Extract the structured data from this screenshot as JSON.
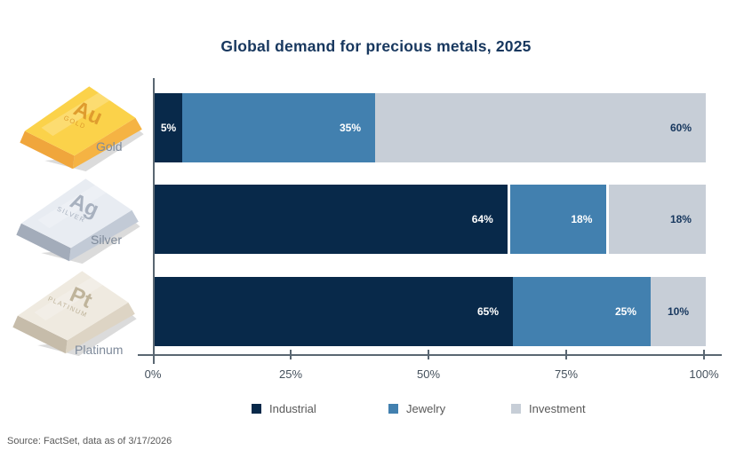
{
  "title": "Global demand for precious metals, 2025",
  "source": "Source: FactSet, data as of 3/17/2026",
  "colors": {
    "industrial": "#08294A",
    "jewelry": "#4280AF",
    "investment": "#C7CED7",
    "title_text": "#17375E",
    "axis": "#5A6772",
    "tick_label": "#44505C",
    "metal_label": "#7E8A9A",
    "legend_label": "#595959",
    "source_label": "#595959"
  },
  "chart_data": {
    "type": "bar",
    "orientation": "horizontal",
    "stacked": true,
    "title": "Global demand for precious metals, 2025",
    "categories": [
      "Gold",
      "Silver",
      "Platinum"
    ],
    "series": [
      {
        "name": "Industrial",
        "color_key": "industrial",
        "label_color": "#FFFFFF",
        "values": [
          5,
          64,
          65
        ]
      },
      {
        "name": "Jewelry",
        "color_key": "jewelry",
        "label_color": "#FFFFFF",
        "values": [
          35,
          18,
          25
        ]
      },
      {
        "name": "Investment",
        "color_key": "investment",
        "label_color": "#17375E",
        "values": [
          60,
          18,
          10
        ]
      }
    ],
    "x_ticks": [
      "0%",
      "25%",
      "50%",
      "75%",
      "100%"
    ],
    "xlim": [
      0,
      100
    ],
    "value_suffix": "%",
    "grid": false,
    "legend_position": "bottom",
    "separated_categories": [
      "Silver"
    ]
  },
  "metals": [
    {
      "label": "Gold",
      "symbol": "Au",
      "caption": "GOLD",
      "colors": {
        "top": "#FBD24A",
        "side": "#F5B343",
        "end": "#F0A63C",
        "text": "#DF9C2E",
        "shadow": "#DBDBDB"
      }
    },
    {
      "label": "Silver",
      "symbol": "Ag",
      "caption": "SILVER",
      "colors": {
        "top": "#E8ECF2",
        "side": "#C2CAD6",
        "end": "#A3ACBA",
        "text": "#A8B1BF",
        "shadow": "#DBDBDB"
      }
    },
    {
      "label": "Platinum",
      "symbol": "Pt",
      "caption": "PLATINUM",
      "colors": {
        "top": "#EFEAE0",
        "side": "#DDD4C4",
        "end": "#C6BCAA",
        "text": "#BFB49B",
        "shadow": "#DBDBDB"
      }
    }
  ]
}
